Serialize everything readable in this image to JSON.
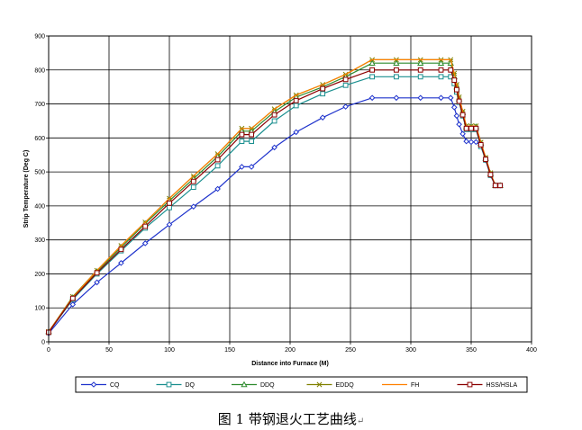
{
  "chart_data": {
    "type": "line",
    "xlabel": "Distance into Furnace (M)",
    "ylabel": "Strip Temperature (Deg C)",
    "xlim": [
      0,
      400
    ],
    "ylim": [
      0,
      900
    ],
    "xticks": [
      0,
      50,
      100,
      150,
      200,
      250,
      300,
      350,
      400
    ],
    "yticks": [
      0,
      100,
      200,
      300,
      400,
      500,
      600,
      700,
      800,
      900
    ],
    "grid": true,
    "legend_position": "bottom",
    "series": [
      {
        "name": "CQ",
        "color": "#1f33cc",
        "marker": "diamond",
        "x": [
          0,
          20,
          40,
          60,
          80,
          100,
          120,
          140,
          160,
          168,
          187,
          205,
          227,
          246,
          268,
          288,
          308,
          325,
          333,
          336,
          338,
          340,
          343,
          346,
          350,
          354,
          358,
          362,
          366,
          370,
          374
        ],
        "y": [
          25,
          110,
          175,
          232,
          290,
          345,
          398,
          450,
          515,
          515,
          572,
          617,
          660,
          692,
          718,
          718,
          718,
          718,
          718,
          690,
          665,
          640,
          612,
          590,
          588,
          588,
          578,
          535,
          490,
          460,
          460
        ]
      },
      {
        "name": "DQ",
        "color": "#1a8f8f",
        "marker": "square",
        "x": [
          0,
          20,
          40,
          60,
          80,
          100,
          120,
          140,
          160,
          168,
          187,
          205,
          227,
          246,
          268,
          288,
          308,
          325,
          333,
          336,
          338,
          340,
          343,
          346,
          350,
          354,
          358,
          362,
          366,
          370,
          374
        ],
        "y": [
          28,
          125,
          200,
          268,
          335,
          395,
          455,
          518,
          590,
          590,
          650,
          695,
          730,
          755,
          780,
          780,
          780,
          780,
          780,
          760,
          735,
          705,
          665,
          625,
          625,
          625,
          575,
          535,
          490,
          460,
          460
        ]
      },
      {
        "name": "DDQ",
        "color": "#2e8b2e",
        "marker": "triangle",
        "x": [
          0,
          20,
          40,
          60,
          80,
          100,
          120,
          140,
          160,
          168,
          187,
          205,
          227,
          246,
          268,
          288,
          308,
          325,
          333,
          336,
          338,
          340,
          343,
          346,
          350,
          354,
          358,
          362,
          366,
          370,
          374
        ],
        "y": [
          30,
          130,
          207,
          278,
          348,
          415,
          480,
          545,
          620,
          620,
          677,
          720,
          750,
          780,
          820,
          820,
          820,
          820,
          820,
          780,
          750,
          715,
          675,
          633,
          633,
          633,
          585,
          540,
          495,
          460,
          460
        ]
      },
      {
        "name": "EDDQ",
        "color": "#808000",
        "marker": "cross",
        "x": [
          0,
          20,
          40,
          60,
          80,
          100,
          120,
          140,
          160,
          168,
          187,
          205,
          227,
          246,
          268,
          288,
          308,
          325,
          333,
          336,
          338,
          340,
          343,
          346,
          350,
          354,
          358,
          362,
          366,
          370,
          374
        ],
        "y": [
          30,
          133,
          210,
          283,
          352,
          422,
          488,
          553,
          628,
          628,
          685,
          726,
          757,
          787,
          830,
          830,
          830,
          830,
          830,
          790,
          757,
          720,
          678,
          635,
          635,
          635,
          587,
          542,
          497,
          460,
          460
        ]
      },
      {
        "name": "FH",
        "color": "#ff8000",
        "marker": "none",
        "x": [
          0,
          20,
          40,
          60,
          80,
          100,
          120,
          140,
          160,
          168,
          187,
          205,
          227,
          246,
          268,
          288,
          308,
          325,
          333,
          336,
          338,
          340,
          343,
          346,
          350,
          354,
          358,
          362,
          366,
          370,
          374
        ],
        "y": [
          30,
          130,
          210,
          283,
          352,
          422,
          488,
          553,
          628,
          628,
          685,
          726,
          757,
          787,
          830,
          830,
          830,
          830,
          830,
          790,
          757,
          720,
          678,
          635,
          635,
          635,
          587,
          542,
          497,
          460,
          460
        ]
      },
      {
        "name": "HSS/HSLA",
        "color": "#8b0000",
        "marker": "square",
        "x": [
          0,
          20,
          40,
          60,
          80,
          100,
          120,
          140,
          160,
          168,
          187,
          205,
          227,
          246,
          268,
          288,
          308,
          325,
          333,
          336,
          338,
          340,
          343,
          346,
          350,
          354,
          358,
          362,
          366,
          370,
          374
        ],
        "y": [
          28,
          128,
          203,
          272,
          340,
          408,
          472,
          536,
          610,
          610,
          668,
          710,
          745,
          772,
          800,
          800,
          800,
          800,
          800,
          770,
          742,
          708,
          668,
          628,
          628,
          628,
          580,
          537,
          492,
          460,
          460
        ]
      }
    ]
  },
  "caption": "图 1  带钢退火工艺曲线"
}
